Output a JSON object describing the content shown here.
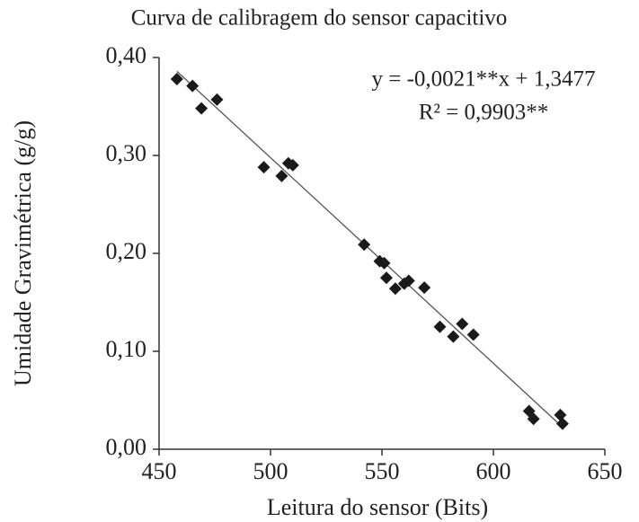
{
  "chart_data": {
    "type": "scatter",
    "title": "Curva de calibragem do sensor capacitivo",
    "x_label": "Leitura do sensor (Bits)",
    "y_label": "Umidade Gravimétrica  (g/g)",
    "annotations": [
      "y = -0,0021**x + 1,3477",
      "R² = 0,9903**"
    ],
    "series": [
      {
        "color": "#1a1a1a",
        "x": [
          458,
          465,
          469,
          476,
          497,
          505,
          508,
          510,
          542,
          549,
          551,
          552,
          556,
          560,
          562,
          569,
          576,
          582,
          586,
          591,
          616,
          618,
          630,
          631
        ],
        "values": [
          0.378,
          0.371,
          0.348,
          0.357,
          0.288,
          0.279,
          0.292,
          0.29,
          0.209,
          0.192,
          0.19,
          0.175,
          0.164,
          0.169,
          0.172,
          0.165,
          0.125,
          0.115,
          0.128,
          0.117,
          0.039,
          0.031,
          0.035,
          0.026
        ]
      }
    ],
    "trendline": {
      "slope": -0.0021,
      "intercept": 1.3477,
      "color": "#555555"
    },
    "xlim": [
      450,
      650
    ],
    "xticks": [
      450,
      500,
      550,
      600,
      650
    ],
    "ylim": [
      0,
      0.4
    ],
    "yticks": [
      {
        "value": 0,
        "label": "0,00"
      },
      {
        "value": 0.1,
        "label": "0,10"
      },
      {
        "value": 0.2,
        "label": "0,20"
      },
      {
        "value": 0.3,
        "label": "0,30"
      },
      {
        "value": 0.4,
        "label": "0,40"
      }
    ],
    "grid": false
  }
}
